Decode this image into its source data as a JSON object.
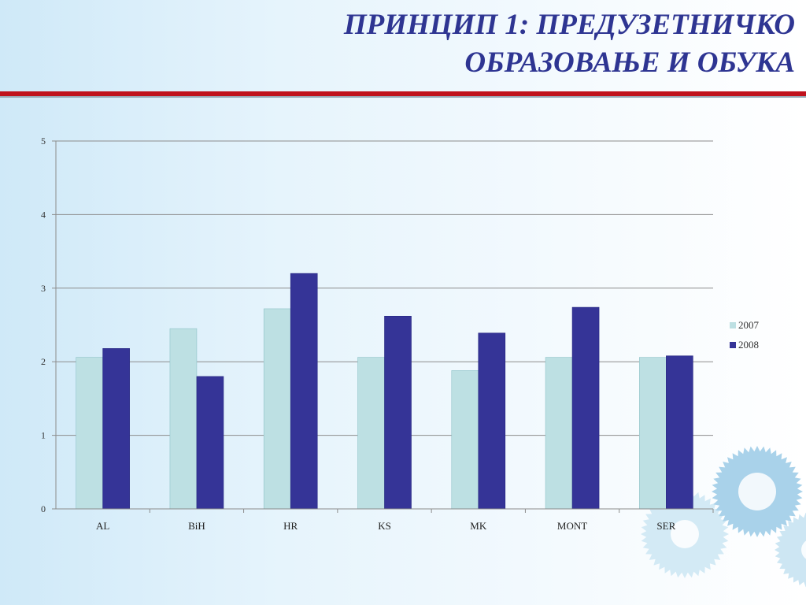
{
  "slide": {
    "title_line1": "ПРИНЦИП 1: ПРЕДУЗЕТНИЧКО",
    "title_line2": "ОБРАЗОВАЊЕ И ОБУКА"
  },
  "colors": {
    "title": "#2e3592",
    "rule": "#c0121c",
    "series_2007": "#bde0e3",
    "series_2008": "#353497",
    "grid": "#8c8c8c"
  },
  "chart_data": {
    "type": "bar",
    "categories": [
      "AL",
      "BiH",
      "HR",
      "KS",
      "MK",
      "MONT",
      "SER"
    ],
    "series": [
      {
        "name": "2007",
        "values": [
          2.06,
          2.45,
          2.72,
          2.06,
          1.88,
          2.06,
          2.06
        ]
      },
      {
        "name": "2008",
        "values": [
          2.18,
          1.8,
          3.2,
          2.62,
          2.39,
          2.74,
          2.08
        ]
      }
    ],
    "yticks": [
      "0",
      "1",
      "2",
      "3",
      "4",
      "5"
    ],
    "ylim": [
      0,
      5
    ],
    "grid": true,
    "legend_position": "right"
  }
}
